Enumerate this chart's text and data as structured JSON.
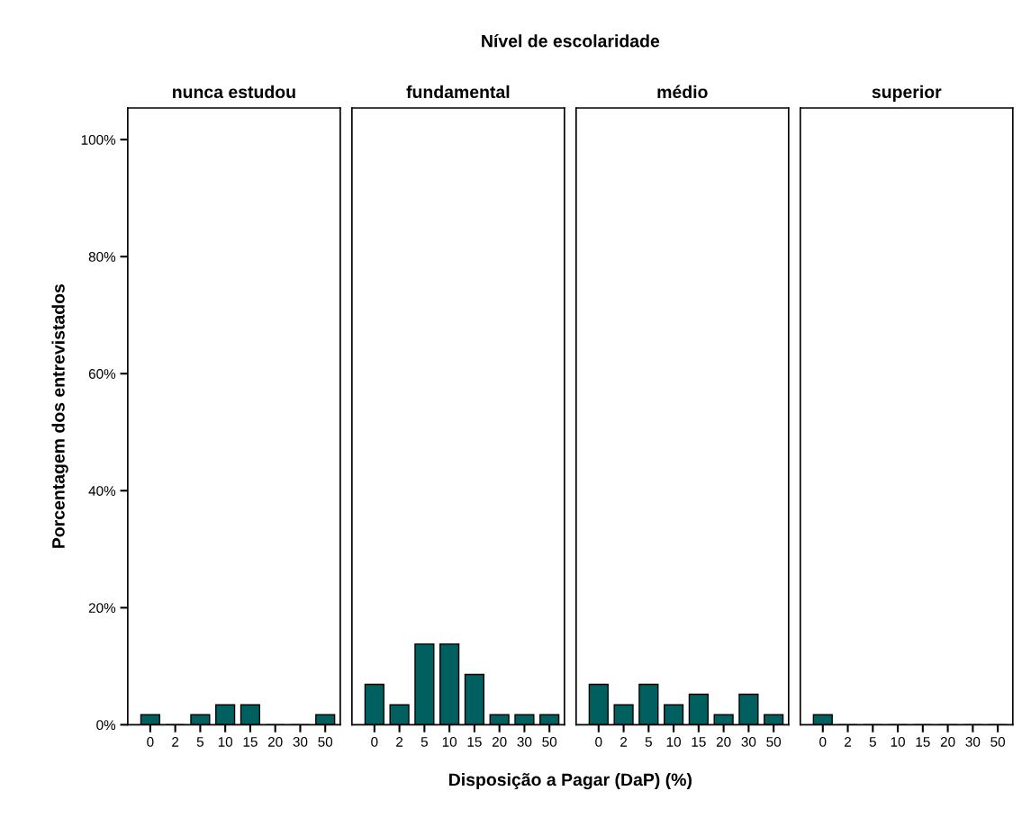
{
  "chart_data": [
    {
      "type": "bar",
      "title": "nunca estudou",
      "ylabel": "Porcentagem dos entrevistados",
      "annotations": [
        "Nível de escolaridade",
        "Disposição a Pagar (DaP) (%)"
      ],
      "categories": [
        "0",
        "2",
        "5",
        "10",
        "15",
        "20",
        "30",
        "50"
      ],
      "values": [
        1.7,
        0,
        1.7,
        3.4,
        3.4,
        0,
        0,
        1.7
      ],
      "color": "#006060",
      "ylim": [
        0,
        105.4
      ],
      "yticks": [
        {
          "value": 0,
          "label": "0%"
        },
        {
          "value": 20,
          "label": "20%"
        },
        {
          "value": 40,
          "label": "40%"
        },
        {
          "value": 60,
          "label": "60%"
        },
        {
          "value": 80,
          "label": "80%"
        },
        {
          "value": 100,
          "label": "100%"
        }
      ]
    },
    {
      "type": "bar",
      "title": "fundamental",
      "categories": [
        "0",
        "2",
        "5",
        "10",
        "15",
        "20",
        "30",
        "50"
      ],
      "values": [
        6.9,
        3.4,
        13.8,
        13.8,
        8.6,
        1.7,
        1.7,
        1.7
      ],
      "color": "#006060",
      "ylim": [
        0,
        105.4
      ],
      "tick_labels": "x"
    },
    {
      "type": "bar",
      "title": "médio",
      "categories": [
        "0",
        "2",
        "5",
        "10",
        "15",
        "20",
        "30",
        "50"
      ],
      "values": [
        6.9,
        3.4,
        6.9,
        3.4,
        5.2,
        1.7,
        5.2,
        1.7
      ],
      "color": "#006060",
      "ylim": [
        0,
        105.4
      ],
      "tick_labels": "x"
    },
    {
      "type": "bar",
      "title": "superior",
      "categories": [
        "0",
        "2",
        "5",
        "10",
        "15",
        "20",
        "30",
        "50"
      ],
      "values": [
        1.7,
        0,
        0,
        0,
        0,
        0,
        0,
        0
      ],
      "color": "#006060",
      "ylim": [
        0,
        105.4
      ],
      "tick_labels": "x"
    }
  ]
}
